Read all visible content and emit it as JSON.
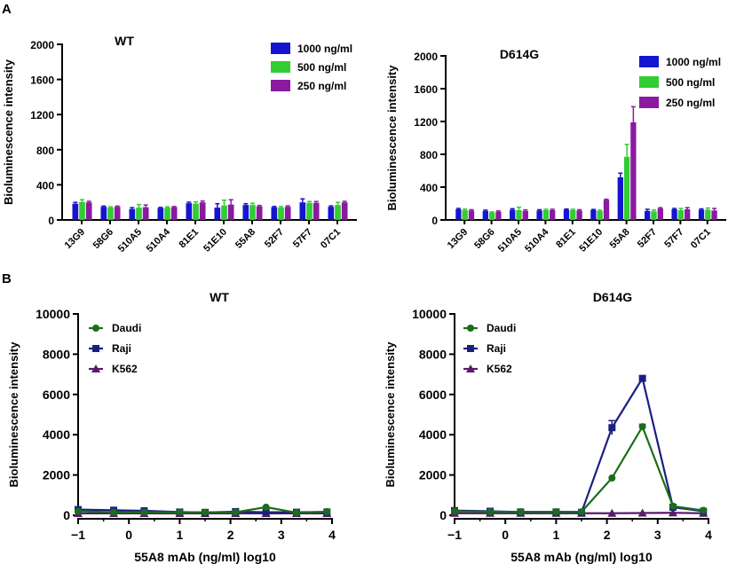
{
  "panels": {
    "a": "A",
    "b": "B"
  },
  "chart_data": [
    {
      "type": "bar",
      "title": "WT",
      "ylabel": "Bioluminescence intensity",
      "xlabel": "",
      "ylim": [
        0,
        2000
      ],
      "yticks": [
        0,
        400,
        800,
        1200,
        1600,
        2000
      ],
      "categories": [
        "13G9",
        "58G6",
        "510A5",
        "510A4",
        "81E1",
        "51E10",
        "55A8",
        "52F7",
        "57F7",
        "07C1"
      ],
      "series": [
        {
          "name": "1000 ng/ml",
          "color": "#1515d0",
          "values": [
            185,
            150,
            125,
            135,
            190,
            140,
            170,
            145,
            200,
            150
          ],
          "errors": [
            15,
            8,
            15,
            8,
            12,
            45,
            15,
            8,
            40,
            10
          ]
        },
        {
          "name": "500 ng/ml",
          "color": "#33cc33",
          "values": [
            205,
            140,
            140,
            140,
            185,
            165,
            170,
            140,
            195,
            170
          ],
          "errors": [
            25,
            10,
            35,
            10,
            20,
            60,
            20,
            12,
            15,
            30
          ]
        },
        {
          "name": "250 ng/ml",
          "color": "#8a1aa0",
          "values": [
            200,
            150,
            145,
            145,
            200,
            175,
            155,
            150,
            195,
            200
          ],
          "errors": [
            12,
            8,
            25,
            8,
            15,
            55,
            10,
            10,
            15,
            12
          ]
        }
      ],
      "legend": "top-right"
    },
    {
      "type": "bar",
      "title": "D614G",
      "ylabel": "Bioluminescence intensity",
      "xlabel": "",
      "ylim": [
        0,
        2000
      ],
      "yticks": [
        0,
        400,
        800,
        1200,
        1600,
        2000
      ],
      "categories": [
        "13G9",
        "58G6",
        "510A5",
        "510A4",
        "81E1",
        "51E10",
        "55A8",
        "52F7",
        "57F7",
        "07C1"
      ],
      "series": [
        {
          "name": "1000 ng/ml",
          "color": "#1515d0",
          "values": [
            130,
            110,
            125,
            115,
            125,
            120,
            520,
            110,
            130,
            125
          ],
          "errors": [
            10,
            10,
            12,
            10,
            8,
            8,
            50,
            20,
            10,
            10
          ]
        },
        {
          "name": "500 ng/ml",
          "color": "#33cc33",
          "values": [
            120,
            90,
            120,
            120,
            120,
            110,
            770,
            105,
            120,
            125
          ],
          "errors": [
            12,
            8,
            35,
            10,
            10,
            10,
            150,
            15,
            20,
            20
          ]
        },
        {
          "name": "250 ng/ml",
          "color": "#8a1aa0",
          "values": [
            115,
            100,
            110,
            120,
            115,
            245,
            1190,
            140,
            130,
            115
          ],
          "errors": [
            10,
            10,
            12,
            10,
            10,
            8,
            190,
            10,
            20,
            25
          ]
        }
      ],
      "legend": "top-right"
    },
    {
      "type": "line",
      "title": "WT",
      "xlabel": "55A8 mAb (ng/ml) log10",
      "ylabel": "Bioluminescence intensity",
      "xlim": [
        -1,
        4
      ],
      "ylim": [
        0,
        10000
      ],
      "xticks": [
        -1,
        0,
        1,
        2,
        3,
        4
      ],
      "yticks": [
        0,
        2000,
        4000,
        6000,
        8000,
        10000
      ],
      "x": [
        -1,
        -0.3,
        0.3,
        1,
        1.5,
        2.1,
        2.7,
        3.3,
        3.9
      ],
      "series": [
        {
          "name": "Daudi",
          "color": "#1a6e1a",
          "marker": "circle",
          "values": [
            200,
            150,
            150,
            150,
            150,
            150,
            400,
            130,
            180
          ],
          "errors": [
            0,
            0,
            0,
            0,
            0,
            0,
            0,
            0,
            0
          ]
        },
        {
          "name": "Raji",
          "color": "#1a2080",
          "marker": "square",
          "values": [
            280,
            250,
            220,
            160,
            140,
            180,
            150,
            150,
            160
          ],
          "errors": [
            0,
            0,
            0,
            0,
            0,
            0,
            0,
            0,
            0
          ]
        },
        {
          "name": "K562",
          "color": "#5a1a6a",
          "marker": "triangle",
          "values": [
            90,
            90,
            90,
            90,
            90,
            90,
            90,
            90,
            90
          ],
          "errors": [
            0,
            0,
            0,
            0,
            0,
            0,
            0,
            0,
            0
          ]
        }
      ],
      "legend": "top-left"
    },
    {
      "type": "line",
      "title": "D614G",
      "xlabel": "55A8 mAb (ng/ml) log10",
      "ylabel": "Bioluminescence intensity",
      "xlim": [
        -1,
        4
      ],
      "ylim": [
        0,
        10000
      ],
      "xticks": [
        -1,
        0,
        1,
        2,
        3,
        4
      ],
      "yticks": [
        0,
        2000,
        4000,
        6000,
        8000,
        10000
      ],
      "x": [
        -1,
        -0.3,
        0.3,
        1,
        1.5,
        2.1,
        2.7,
        3.3,
        3.9
      ],
      "series": [
        {
          "name": "Daudi",
          "color": "#1a6e1a",
          "marker": "circle",
          "values": [
            200,
            170,
            170,
            170,
            170,
            1850,
            4400,
            450,
            240
          ],
          "errors": [
            0,
            0,
            0,
            0,
            0,
            0,
            120,
            0,
            0
          ]
        },
        {
          "name": "Raji",
          "color": "#1a2080",
          "marker": "square",
          "values": [
            230,
            200,
            160,
            160,
            140,
            4350,
            6800,
            400,
            200
          ],
          "errors": [
            0,
            0,
            0,
            0,
            0,
            350,
            0,
            0,
            0
          ]
        },
        {
          "name": "K562",
          "color": "#5a1a6a",
          "marker": "triangle",
          "values": [
            100,
            100,
            100,
            100,
            100,
            100,
            110,
            120,
            100
          ],
          "errors": [
            0,
            0,
            0,
            0,
            0,
            0,
            0,
            0,
            0
          ]
        }
      ],
      "legend": "top-left"
    }
  ]
}
